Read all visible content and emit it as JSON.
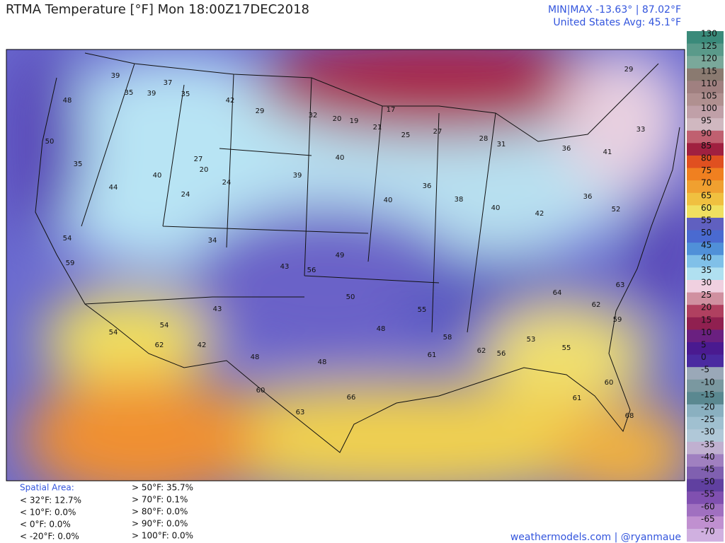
{
  "header": {
    "title": "RTMA Temperature [°F]  Mon 18:00Z17DEC2018",
    "minmax": "MIN|MAX -13.63°  |  87.02°F",
    "average": "United States Avg: 45.1°F"
  },
  "colorbar": {
    "ticks": [
      130,
      125,
      120,
      115,
      110,
      105,
      100,
      95,
      90,
      85,
      80,
      75,
      70,
      65,
      60,
      55,
      50,
      45,
      40,
      35,
      30,
      25,
      20,
      15,
      10,
      5,
      0,
      -5,
      -10,
      -15,
      -20,
      -25,
      -30,
      -35,
      -40,
      -45,
      -50,
      -55,
      -60,
      -65,
      -70
    ]
  },
  "stations": [
    39,
    35,
    39,
    37,
    35,
    42,
    29,
    32,
    20,
    19,
    21,
    17,
    25,
    27,
    28,
    31,
    36,
    41,
    33,
    29,
    50,
    48,
    35,
    44,
    40,
    27,
    20,
    24,
    24,
    39,
    40,
    40,
    36,
    38,
    40,
    42,
    36,
    52,
    54,
    59,
    54,
    54,
    62,
    34,
    43,
    43,
    56,
    49,
    50,
    48,
    55,
    58,
    62,
    53,
    55,
    59,
    61,
    61,
    66,
    63,
    60,
    42,
    48,
    48,
    56,
    64,
    62,
    63,
    60,
    68
  ],
  "spatial_area": {
    "title": "Spatial Area:",
    "items": [
      "< 32°F: 12.7%",
      "< 10°F: 0.0%",
      "< 0°F: 0.0%",
      "< -20°F: 0.0%",
      "> 50°F: 35.7%",
      "> 70°F: 0.1%",
      "> 80°F: 0.0%",
      "> 90°F: 0.0%",
      "> 100°F: 0.0%"
    ]
  },
  "footer": "weathermodels.com | @ryanmaue"
}
